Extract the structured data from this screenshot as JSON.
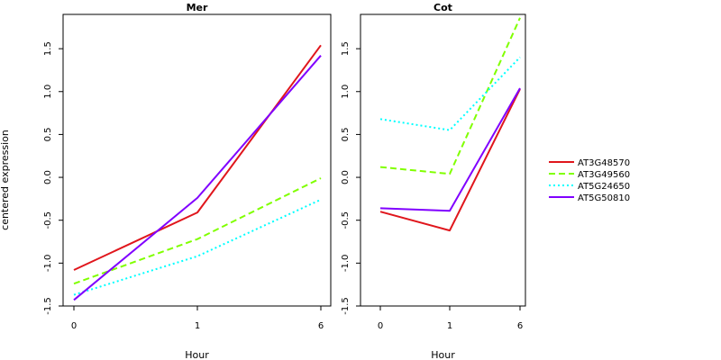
{
  "chart_data": {
    "type": "line",
    "ylabel": "centered expression",
    "ylim": [
      -1.5,
      1.9
    ],
    "yticks": [
      "-1.5",
      "-1.0",
      "-0.5",
      "0.0",
      "0.5",
      "1.0",
      "1.5"
    ],
    "xlabel": "Hour",
    "x": [
      "0",
      "1",
      "6"
    ],
    "legend": {
      "placement": "right"
    },
    "series_styles": [
      {
        "name": "AT3G48570",
        "color": "#e0161c",
        "dash": "solid"
      },
      {
        "name": "AT3G49560",
        "color": "#80ff00",
        "dash": "dashed"
      },
      {
        "name": "AT5G24650",
        "color": "#00ffff",
        "dash": "dotted"
      },
      {
        "name": "AT5G50810",
        "color": "#8000ff",
        "dash": "solid"
      }
    ],
    "panels": [
      {
        "title": "Mer",
        "series": [
          {
            "name": "AT3G48570",
            "values": [
              -1.08,
              -0.41,
              1.54
            ]
          },
          {
            "name": "AT3G49560",
            "values": [
              -1.24,
              -0.72,
              -0.01
            ]
          },
          {
            "name": "AT5G24650",
            "values": [
              -1.37,
              -0.92,
              -0.26
            ]
          },
          {
            "name": "AT5G50810",
            "values": [
              -1.43,
              -0.24,
              1.42
            ]
          }
        ]
      },
      {
        "title": "Cot",
        "series": [
          {
            "name": "AT3G48570",
            "values": [
              -0.4,
              -0.62,
              1.03
            ]
          },
          {
            "name": "AT3G49560",
            "values": [
              0.12,
              0.04,
              1.86
            ]
          },
          {
            "name": "AT5G24650",
            "values": [
              0.68,
              0.55,
              1.4
            ]
          },
          {
            "name": "AT5G50810",
            "values": [
              -0.36,
              -0.39,
              1.04
            ]
          }
        ]
      }
    ]
  }
}
